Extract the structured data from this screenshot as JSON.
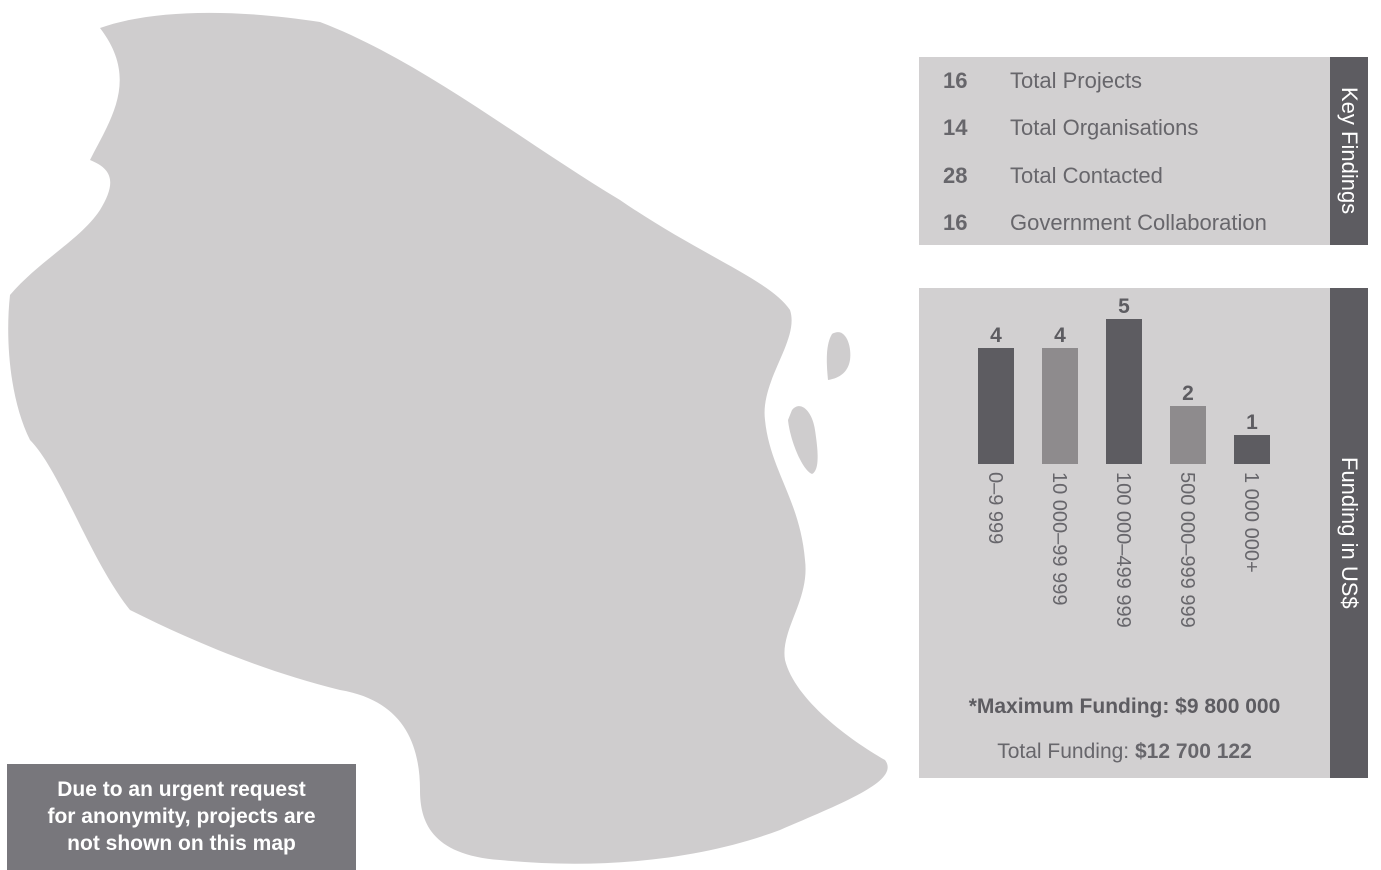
{
  "key_findings": {
    "tab_label": "Key Findings",
    "items": [
      {
        "value": "16",
        "label": "Total Projects"
      },
      {
        "value": "14",
        "label": "Total Organisations"
      },
      {
        "value": "28",
        "label": "Total Contacted"
      },
      {
        "value": "16",
        "label": "Government Collaboration"
      }
    ]
  },
  "funding": {
    "tab_label": "Funding in US$",
    "max_funding": "*Maximum Funding: $9 800 000",
    "total_funding_label": "Total Funding: ",
    "total_funding_value": "$12 700 122"
  },
  "note": {
    "lines": [
      "Due to an urgent request",
      "for anonymity, projects are",
      "not shown on this map"
    ]
  },
  "colors": {
    "map_fill": "#cfcdce",
    "bar_dark": "#5d5c61",
    "bar_light": "#8e8b8d",
    "panel_bg": "#d2d0d1"
  },
  "chart_data": {
    "type": "bar",
    "categories": [
      "0–9 999",
      "10 000–99 999",
      "100 000–499 999",
      "500 000–999 999",
      "1 000 000+"
    ],
    "values": [
      4,
      4,
      5,
      2,
      1
    ],
    "ylim": [
      0,
      5
    ]
  }
}
